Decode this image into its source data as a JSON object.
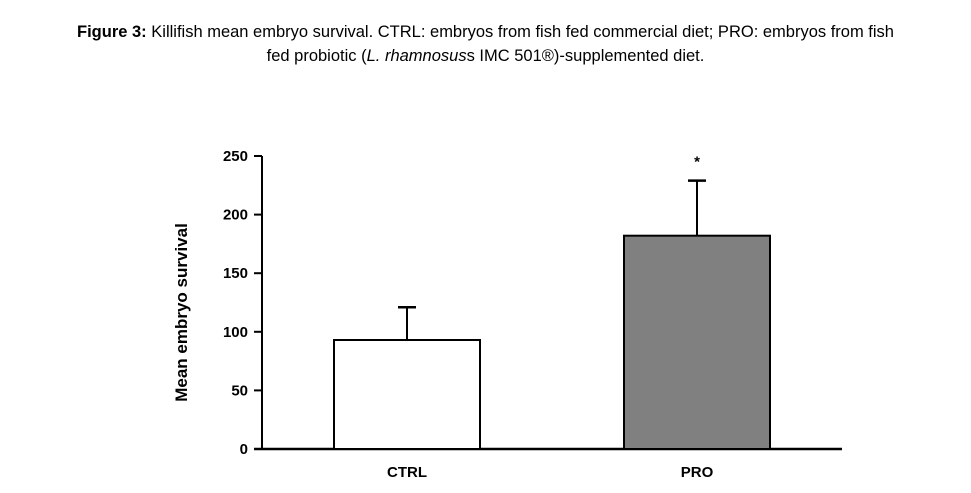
{
  "caption": {
    "label": "Figure 3:",
    "text_1": " Killifish mean embryo survival. CTRL: embryos from fish fed commercial diet; PRO: embryos from fish",
    "text_2": "fed probiotic (",
    "species": "L. rhamnosus",
    "text_3": "s IMC 501®)-supplemented diet."
  },
  "chart_data": {
    "type": "bar",
    "categories": [
      "CTRL",
      "PRO"
    ],
    "values": [
      93,
      182
    ],
    "error_upper": [
      121,
      229
    ],
    "annotations": [
      "",
      "*"
    ],
    "bar_colors": [
      "#ffffff",
      "#808080"
    ],
    "title": "",
    "xlabel": "",
    "ylabel": "Mean embryo survival",
    "ylim": [
      0,
      250
    ],
    "yticks": [
      0,
      50,
      100,
      150,
      200,
      250
    ],
    "grid": false,
    "legend": "none"
  }
}
